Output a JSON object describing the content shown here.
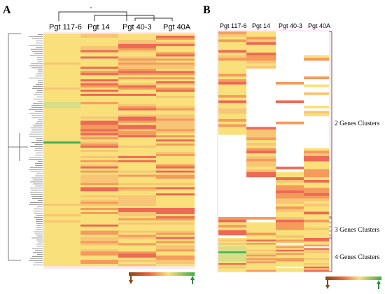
{
  "chart_data": [
    {
      "panel": "A",
      "type": "heatmap",
      "columns": [
        "Pgt 117-6",
        "Pgt 14",
        "Pgt 40-3",
        "Pgt 40A"
      ],
      "column_tree": "((Pgt 117-6),((Pgt 14),((Pgt 40-3),(Pgt 40A))))",
      "rows": 112,
      "row_dendrogram": true,
      "highlighted_row": 52,
      "value_scale": "0 = low expression (red/brown) to 1 = high expression (green)",
      "column_profiles": {
        "Pgt 117-6": "mostly uniform pale yellow, one green band near row 52, faint green bands near rows 33-35",
        "Pgt 14": "alternating orange-red and pale yellow bands",
        "Pgt 40-3": "alternating orange-red and pale yellow bands",
        "Pgt 40A": "alternating orange-red and pale yellow bands"
      }
    },
    {
      "panel": "B",
      "type": "heatmap",
      "columns": [
        "Pgt 117-6",
        "Pgt 14",
        "Pgt 40-3",
        "Pgt 40A"
      ],
      "groups": [
        {
          "label": "2 Genes Clusters",
          "rows": 70
        },
        {
          "label": "3 Genes Clusters",
          "rows": 8
        },
        {
          "label": "4 Genes Clusters",
          "rows": 20
        }
      ],
      "blank_cells": "white where gene absent in strain"
    }
  ],
  "legend": {
    "arrow_low_color": "#8B4513",
    "arrow_high_color": "#2e8b3e",
    "gradient": [
      "#8B4513",
      "#e8643c",
      "#f9e07a",
      "#3cb043"
    ]
  },
  "colors": {
    "yellow": "#f9e07a",
    "light_orange": "#f7c575",
    "orange": "#f49b5c",
    "red": "#ec6a55",
    "green": "#3fae55",
    "background_tint": "#fde8f3"
  },
  "labels": {
    "panel_a": "A",
    "panel_b": "B",
    "a_col1": "Pgt 117-6",
    "a_col2": "Pgt 14",
    "a_col3": "Pgt 40-3",
    "a_col4": "Pgt 40A",
    "b_col1": "Pgt 117-6",
    "b_col2": "Pgt 14",
    "b_col3": "Pgt 40-3",
    "b_col4": "Pgt 40A",
    "cluster2": "2 Genes Clusters",
    "cluster3": "3 Genes Clusters",
    "cluster4": "4 Genes Clusters"
  }
}
